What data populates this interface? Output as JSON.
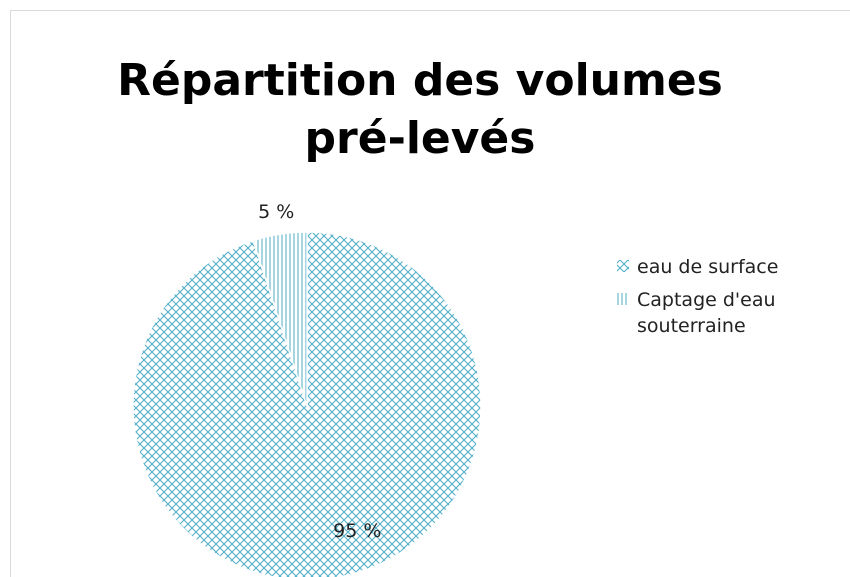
{
  "chart_data": {
    "type": "pie",
    "title": "Répartition des volumes pré-levés",
    "categories": [
      "eau de surface",
      "Captage d'eau souterraine"
    ],
    "values": [
      95,
      5
    ],
    "value_labels": [
      "95 %",
      "5 %"
    ],
    "colors": [
      "#4bacc6",
      "#4bacc6"
    ],
    "patterns": [
      "crosshatch",
      "vertical"
    ],
    "legend": "right"
  }
}
